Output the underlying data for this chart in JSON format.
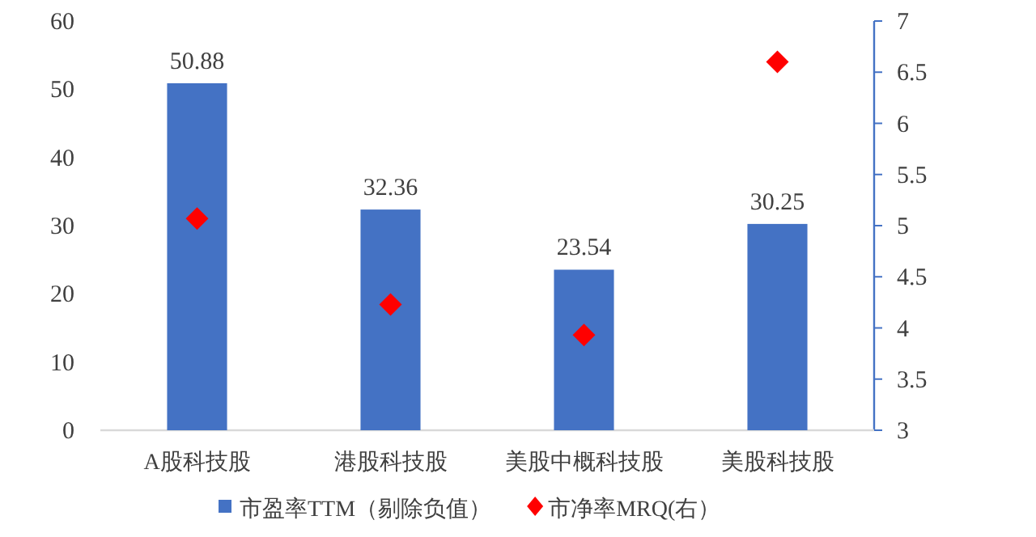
{
  "chart_data": {
    "type": "bar",
    "categories": [
      "A股科技股",
      "港股科技股",
      "美股中概科技股",
      "美股科技股"
    ],
    "series": [
      {
        "name": "市盈率TTM（剔除负值）",
        "color": "#4472c4",
        "values": [
          50.88,
          32.36,
          23.54,
          30.25
        ],
        "value_labels": [
          "50.88",
          "32.36",
          "23.54",
          "30.25"
        ]
      },
      {
        "name": "市净率MRQ(右）",
        "type": "scatter",
        "axis": "y2",
        "marker": "diamond",
        "color": "#ff0000",
        "values": [
          5.07,
          4.23,
          3.93,
          6.6
        ]
      }
    ],
    "ylim": [
      0,
      60
    ],
    "yticks": [
      0,
      10,
      20,
      30,
      40,
      50,
      60
    ],
    "y2lim": [
      3,
      7
    ],
    "y2ticks": [
      3,
      3.5,
      4,
      4.5,
      5,
      5.5,
      6,
      6.5,
      7
    ],
    "grid": false,
    "legend": "bottom"
  }
}
